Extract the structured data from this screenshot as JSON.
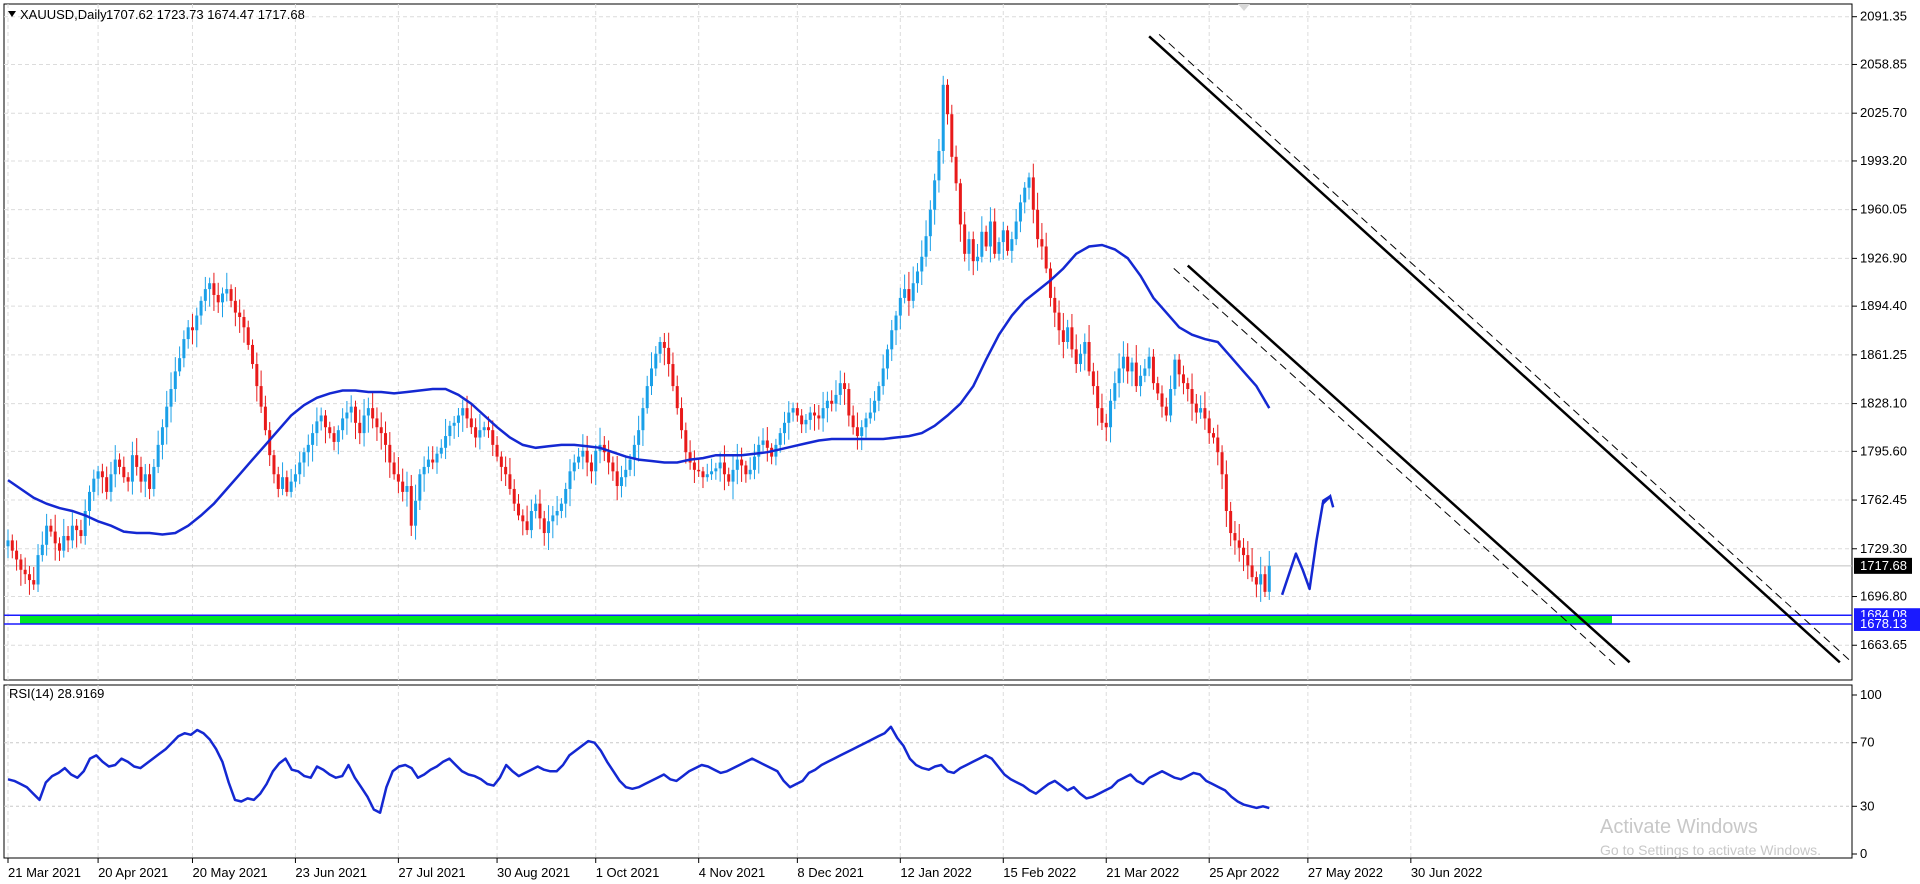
{
  "header": {
    "symbol": "XAUUSD,Daily",
    "ohlc": "1707.62 1723.73 1674.47 1717.68"
  },
  "rsi_header": "RSI(14) 28.9169",
  "watermark": {
    "title": "Activate Windows",
    "subtitle": "Go to Settings to activate Windows."
  },
  "colors": {
    "bull": "#1aa0e8",
    "bear": "#e81a1a",
    "ma": "#1428d2",
    "rsi": "#1428d2",
    "support": "#00e626",
    "support_border": "#1a1aff",
    "grid": "#dcdcdc"
  },
  "chart_data": [
    {
      "type": "candlestick",
      "symbol": "XAUUSD",
      "timeframe": "Daily",
      "price_range": [
        1640.0,
        2100.0
      ],
      "y_ticks": [
        "2091.35",
        "2058.85",
        "2025.70",
        "1993.20",
        "1960.05",
        "1926.90",
        "1894.40",
        "1861.25",
        "1828.10",
        "1795.60",
        "1762.45",
        "1729.30",
        "1696.80",
        "1663.65"
      ],
      "x_ticks": [
        "21 Mar 2021",
        "20 Apr 2021",
        "20 May 2021",
        "23 Jun 2021",
        "27 Jul 2021",
        "30 Aug 2021",
        "1 Oct 2021",
        "4 Nov 2021",
        "8 Dec 2021",
        "12 Jan 2022",
        "15 Feb 2022",
        "21 Mar 2022",
        "25 Apr 2022",
        "27 May 2022",
        "30 Jun 2022"
      ],
      "current_price": "1717.68",
      "support_zone": {
        "upper": "1684.08",
        "lower": "1678.13"
      },
      "close_series": [
        1735,
        1728,
        1722,
        1715,
        1712,
        1708,
        1705,
        1725,
        1732,
        1745,
        1741,
        1733,
        1728,
        1738,
        1735,
        1745,
        1742,
        1738,
        1755,
        1768,
        1777,
        1782,
        1778,
        1768,
        1780,
        1790,
        1785,
        1778,
        1775,
        1793,
        1785,
        1775,
        1780,
        1770,
        1785,
        1800,
        1812,
        1826,
        1838,
        1850,
        1859,
        1872,
        1880,
        1878,
        1888,
        1898,
        1906,
        1910,
        1902,
        1897,
        1903,
        1906,
        1898,
        1890,
        1887,
        1880,
        1868,
        1855,
        1840,
        1826,
        1810,
        1793,
        1780,
        1770,
        1778,
        1768,
        1775,
        1780,
        1788,
        1795,
        1800,
        1808,
        1816,
        1820,
        1812,
        1808,
        1802,
        1810,
        1818,
        1822,
        1826,
        1815,
        1808,
        1820,
        1825,
        1818,
        1812,
        1808,
        1800,
        1788,
        1780,
        1775,
        1768,
        1772,
        1745,
        1762,
        1780,
        1785,
        1790,
        1788,
        1794,
        1798,
        1806,
        1813,
        1815,
        1820,
        1825,
        1818,
        1812,
        1805,
        1810,
        1812,
        1810,
        1800,
        1792,
        1785,
        1780,
        1770,
        1760,
        1752,
        1748,
        1742,
        1755,
        1760,
        1750,
        1740,
        1748,
        1752,
        1755,
        1760,
        1770,
        1782,
        1788,
        1792,
        1796,
        1788,
        1782,
        1796,
        1800,
        1795,
        1788,
        1782,
        1772,
        1778,
        1783,
        1790,
        1800,
        1810,
        1825,
        1840,
        1852,
        1862,
        1870,
        1866,
        1855,
        1840,
        1825,
        1810,
        1795,
        1788,
        1783,
        1782,
        1778,
        1780,
        1782,
        1784,
        1788,
        1780,
        1775,
        1783,
        1790,
        1786,
        1780,
        1783,
        1792,
        1800,
        1803,
        1798,
        1792,
        1800,
        1808,
        1815,
        1822,
        1825,
        1820,
        1814,
        1817,
        1822,
        1820,
        1818,
        1825,
        1830,
        1828,
        1834,
        1842,
        1838,
        1820,
        1812,
        1806,
        1812,
        1818,
        1822,
        1830,
        1840,
        1852,
        1865,
        1878,
        1888,
        1900,
        1906,
        1898,
        1910,
        1918,
        1928,
        1942,
        1960,
        1980,
        2000,
        2045,
        2025,
        1996,
        1978,
        1950,
        1930,
        1940,
        1925,
        1928,
        1945,
        1935,
        1952,
        1930,
        1938,
        1946,
        1932,
        1940,
        1952,
        1965,
        1975,
        1982,
        1960,
        1940,
        1935,
        1920,
        1900,
        1890,
        1878,
        1870,
        1880,
        1865,
        1855,
        1862,
        1870,
        1850,
        1840,
        1825,
        1815,
        1812,
        1830,
        1842,
        1852,
        1860,
        1850,
        1856,
        1840,
        1847,
        1852,
        1860,
        1842,
        1835,
        1826,
        1820,
        1838,
        1858,
        1848,
        1842,
        1838,
        1828,
        1822,
        1825,
        1818,
        1808,
        1805,
        1795,
        1780,
        1755,
        1740,
        1735,
        1730,
        1725,
        1718,
        1710,
        1705,
        1712,
        1700,
        1717.68
      ],
      "ma_series": [
        1776,
        1770,
        1764,
        1760,
        1757,
        1755,
        1752,
        1748,
        1745,
        1741,
        1740,
        1740,
        1739,
        1740,
        1745,
        1752,
        1760,
        1770,
        1780,
        1790,
        1800,
        1810,
        1820,
        1827,
        1832,
        1835,
        1837,
        1837,
        1836,
        1836,
        1835,
        1836,
        1837,
        1838,
        1838,
        1834,
        1828,
        1820,
        1812,
        1805,
        1800,
        1798,
        1799,
        1800,
        1800,
        1799,
        1798,
        1795,
        1792,
        1790,
        1789,
        1788,
        1788,
        1790,
        1791,
        1793,
        1793,
        1793,
        1794,
        1795,
        1797,
        1799,
        1801,
        1803,
        1804,
        1804,
        1804,
        1804,
        1804,
        1805,
        1806,
        1808,
        1813,
        1820,
        1828,
        1840,
        1858,
        1875,
        1888,
        1898,
        1905,
        1912,
        1920,
        1930,
        1935,
        1936,
        1933,
        1927,
        1915,
        1900,
        1890,
        1880,
        1875,
        1872,
        1870,
        1860,
        1850,
        1840,
        1825
      ],
      "channel_upper": {
        "start": [
          266,
          2078
        ],
        "end": [
          427,
          1652
        ],
        "units": [
          "bar_index",
          "price"
        ]
      },
      "channel_lower": {
        "start": [
          275,
          1922
        ],
        "end": [
          378,
          1652
        ],
        "units": [
          "bar_index",
          "price"
        ]
      },
      "projection": [
        1698,
        1712,
        1726,
        1715,
        1702,
        1735,
        1762,
        1765
      ]
    },
    {
      "type": "line",
      "indicator": "RSI",
      "period": 14,
      "current_value": 28.9169,
      "y_range": [
        0,
        100
      ],
      "y_ticks": [
        "100",
        "70",
        "30",
        "0"
      ],
      "values": [
        47,
        46,
        44,
        42,
        38,
        34,
        45,
        49,
        51,
        54,
        50,
        48,
        52,
        60,
        62,
        58,
        55,
        56,
        60,
        58,
        55,
        54,
        57,
        60,
        63,
        66,
        70,
        74,
        76,
        75,
        78,
        76,
        72,
        66,
        58,
        45,
        34,
        33,
        35,
        34,
        38,
        44,
        52,
        57,
        60,
        53,
        52,
        49,
        48,
        55,
        53,
        50,
        48,
        49,
        56,
        48,
        42,
        36,
        28,
        26,
        42,
        52,
        55,
        56,
        54,
        48,
        50,
        53,
        55,
        58,
        60,
        56,
        52,
        50,
        49,
        47,
        44,
        43,
        48,
        56,
        52,
        49,
        51,
        53,
        55,
        53,
        52,
        52,
        56,
        62,
        65,
        68,
        71,
        70,
        65,
        58,
        52,
        46,
        42,
        41,
        42,
        44,
        46,
        48,
        50,
        47,
        46,
        49,
        52,
        54,
        56,
        55,
        53,
        51,
        52,
        54,
        56,
        58,
        60,
        58,
        56,
        54,
        52,
        46,
        42,
        44,
        46,
        51,
        53,
        56,
        58,
        60,
        62,
        64,
        66,
        68,
        70,
        72,
        74,
        76,
        80,
        73,
        68,
        60,
        56,
        54,
        53,
        55,
        56,
        52,
        51,
        54,
        56,
        58,
        60,
        62,
        60,
        55,
        50,
        47,
        45,
        43,
        40,
        38,
        41,
        44,
        46,
        43,
        40,
        42,
        38,
        35,
        36,
        38,
        40,
        42,
        46,
        48,
        50,
        46,
        44,
        48,
        50,
        52,
        50,
        48,
        47,
        49,
        51,
        50,
        46,
        44,
        42,
        40,
        36,
        33,
        31,
        30,
        29,
        30,
        28.9169
      ]
    }
  ]
}
